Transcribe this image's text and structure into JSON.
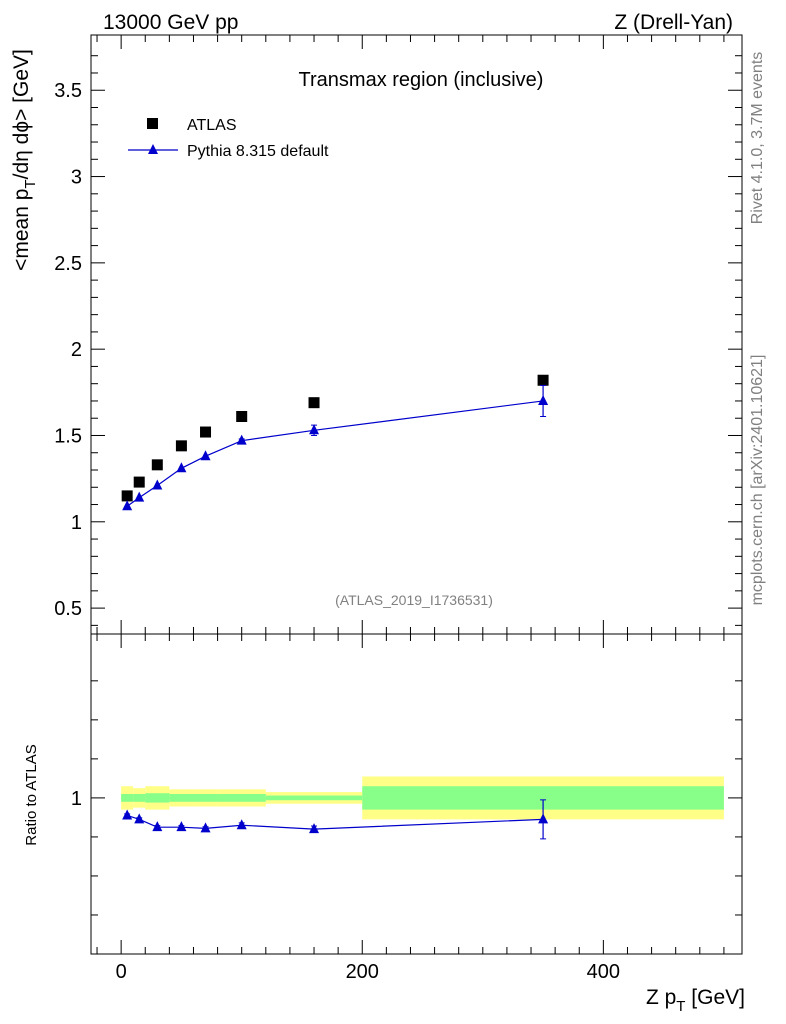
{
  "header": {
    "energy": "13000 GeV pp",
    "process": "Z (Drell-Yan)"
  },
  "side": {
    "rivet": "Rivet 4.1.0,  3.7M events",
    "mcplots": "mcplots.cern.ch [arXiv:2401.10621]"
  },
  "chart_data": [
    {
      "type": "scatter",
      "title": "Transmax region (inclusive)",
      "analysis": "(ATLAS_2019_I1736531)",
      "ylabel": "<mean p_T/dη dϕ> [GeV]",
      "ylabel_parts": {
        "pre": "<mean p",
        "sub": "T",
        "post": "/dη dϕ> [GeV]"
      },
      "xlim": [
        -25,
        515
      ],
      "ylim": [
        0.35,
        3.82
      ],
      "yticks": [
        0.5,
        1,
        1.5,
        2,
        2.5,
        3,
        3.5
      ],
      "ytick_labels": [
        "0.5",
        "1",
        "1.5",
        "2",
        "2.5",
        "3",
        "3.5"
      ],
      "series": [
        {
          "name": "ATLAS",
          "marker": "square",
          "color": "#000000",
          "x": [
            5,
            15,
            30,
            50,
            70,
            100,
            160,
            350
          ],
          "y": [
            1.15,
            1.23,
            1.33,
            1.44,
            1.52,
            1.61,
            1.69,
            1.82
          ]
        },
        {
          "name": "Pythia 8.315 default",
          "marker": "triangle",
          "color": "#0000cc",
          "x": [
            5,
            15,
            30,
            50,
            70,
            100,
            160,
            350
          ],
          "y": [
            1.09,
            1.14,
            1.21,
            1.31,
            1.38,
            1.47,
            1.53,
            1.7
          ],
          "yerr": [
            0.004,
            0.004,
            0.005,
            0.006,
            0.007,
            0.01,
            0.03,
            0.09
          ]
        }
      ]
    },
    {
      "type": "scatter",
      "ylabel": "Ratio to ATLAS",
      "xlabel": "Z p_T [GeV]",
      "xlabel_parts": {
        "pre": "Z p",
        "sub": "T",
        "post": " [GeV]"
      },
      "xlim": [
        -25,
        515
      ],
      "ylim": [
        0.6,
        1.42
      ],
      "xticks": [
        0,
        200,
        400
      ],
      "xtick_labels": [
        "0",
        "200",
        "400"
      ],
      "yticks": [
        1
      ],
      "ytick_labels": [
        "1"
      ],
      "bands": [
        {
          "x0": 0,
          "x1": 10,
          "inner": 0.01,
          "outer": 0.03
        },
        {
          "x0": 10,
          "x1": 20,
          "inner": 0.01,
          "outer": 0.025
        },
        {
          "x0": 20,
          "x1": 40,
          "inner": 0.012,
          "outer": 0.03
        },
        {
          "x0": 40,
          "x1": 60,
          "inner": 0.01,
          "outer": 0.022
        },
        {
          "x0": 60,
          "x1": 80,
          "inner": 0.01,
          "outer": 0.022
        },
        {
          "x0": 80,
          "x1": 120,
          "inner": 0.01,
          "outer": 0.022
        },
        {
          "x0": 120,
          "x1": 200,
          "inner": 0.006,
          "outer": 0.015
        },
        {
          "x0": 200,
          "x1": 500,
          "inner": 0.03,
          "outer": 0.055
        }
      ],
      "band_colors": {
        "outer": "#ffff88",
        "inner": "#88ff88"
      },
      "series": [
        {
          "name": "Pythia 8.315 default",
          "marker": "triangle",
          "color": "#0000cc",
          "x": [
            5,
            15,
            30,
            50,
            70,
            100,
            160,
            350
          ],
          "y": [
            0.955,
            0.945,
            0.925,
            0.925,
            0.922,
            0.93,
            0.92,
            0.945
          ],
          "yerr": [
            0.004,
            0.004,
            0.004,
            0.004,
            0.004,
            0.006,
            0.008,
            0.05
          ]
        }
      ]
    }
  ]
}
